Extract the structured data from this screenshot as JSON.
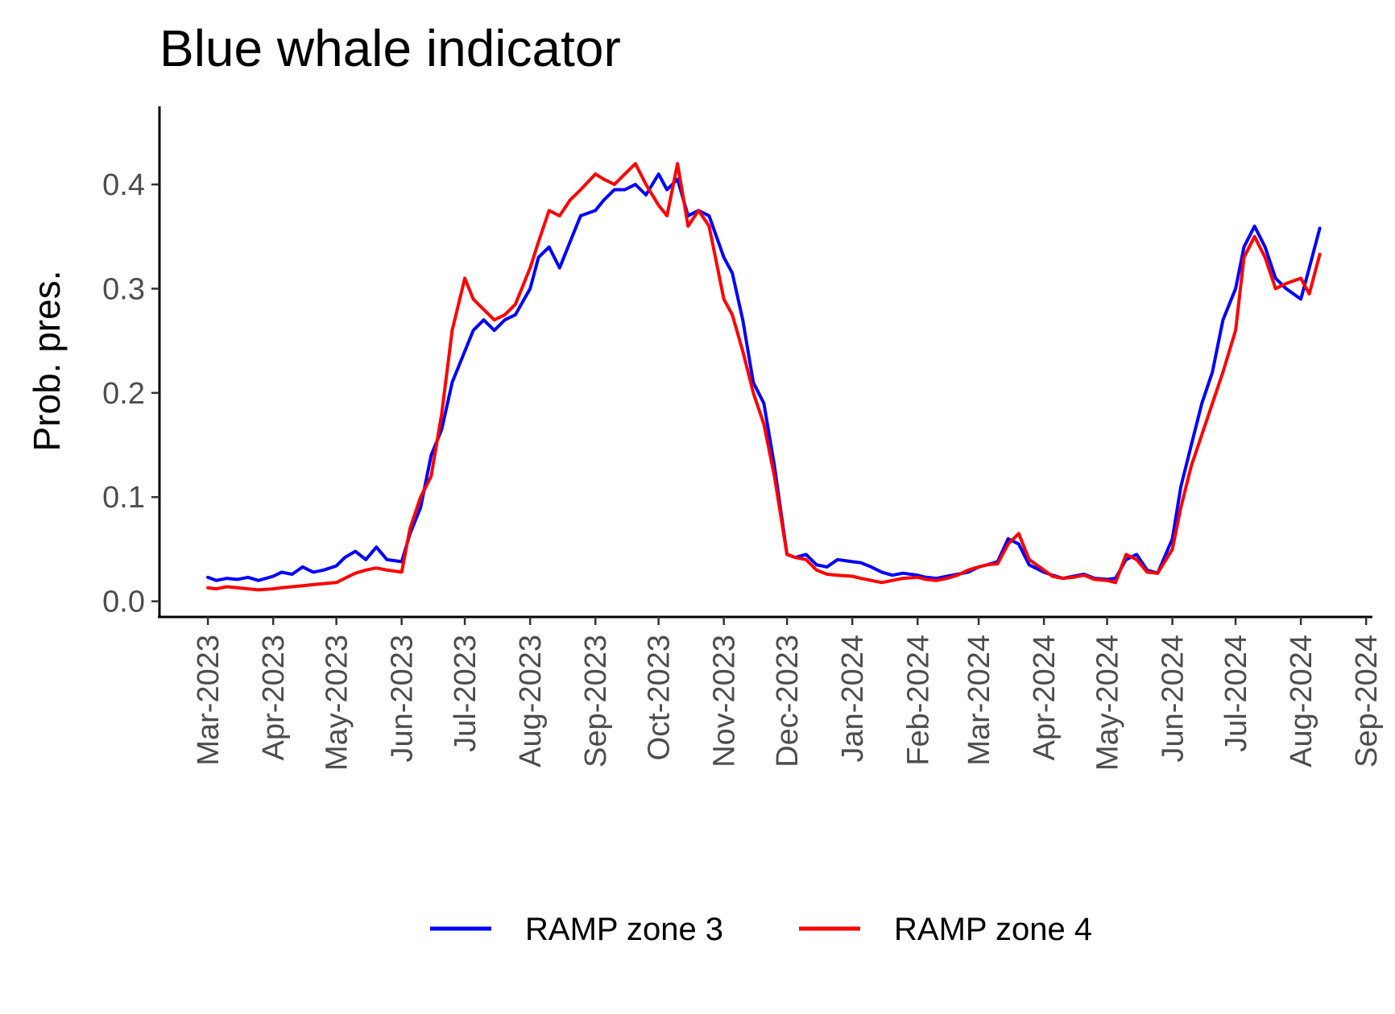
{
  "chart_data": {
    "type": "line",
    "title": "Blue whale indicator",
    "xlabel": "",
    "ylabel": "Prob. pres.",
    "x_ticks": [
      "Mar-2023",
      "Apr-2023",
      "May-2023",
      "Jun-2023",
      "Jul-2023",
      "Aug-2023",
      "Sep-2023",
      "Oct-2023",
      "Nov-2023",
      "Dec-2023",
      "Jan-2024",
      "Feb-2024",
      "Mar-2024",
      "Apr-2024",
      "May-2024",
      "Jun-2024",
      "Jul-2024",
      "Aug-2024",
      "Sep-2024"
    ],
    "y_ticks": [
      "0.0",
      "0.1",
      "0.2",
      "0.3",
      "0.4"
    ],
    "xlim": [
      "2023-02-06",
      "2024-09-04"
    ],
    "ylim": [
      -0.015,
      0.475
    ],
    "grid": false,
    "legend_position": "bottom",
    "series": [
      {
        "name": "RAMP zone 3",
        "color": "#0000ff",
        "points": [
          [
            "2023-03-01",
            0.023
          ],
          [
            "2023-03-05",
            0.02
          ],
          [
            "2023-03-10",
            0.022
          ],
          [
            "2023-03-15",
            0.021
          ],
          [
            "2023-03-20",
            0.023
          ],
          [
            "2023-03-25",
            0.02
          ],
          [
            "2023-04-01",
            0.024
          ],
          [
            "2023-04-05",
            0.028
          ],
          [
            "2023-04-10",
            0.026
          ],
          [
            "2023-04-15",
            0.033
          ],
          [
            "2023-04-20",
            0.028
          ],
          [
            "2023-04-25",
            0.03
          ],
          [
            "2023-05-01",
            0.034
          ],
          [
            "2023-05-05",
            0.042
          ],
          [
            "2023-05-10",
            0.048
          ],
          [
            "2023-05-15",
            0.04
          ],
          [
            "2023-05-20",
            0.052
          ],
          [
            "2023-05-25",
            0.04
          ],
          [
            "2023-06-01",
            0.038
          ],
          [
            "2023-06-05",
            0.065
          ],
          [
            "2023-06-10",
            0.09
          ],
          [
            "2023-06-15",
            0.14
          ],
          [
            "2023-06-20",
            0.165
          ],
          [
            "2023-06-25",
            0.21
          ],
          [
            "2023-07-01",
            0.24
          ],
          [
            "2023-07-05",
            0.26
          ],
          [
            "2023-07-10",
            0.27
          ],
          [
            "2023-07-15",
            0.26
          ],
          [
            "2023-07-20",
            0.27
          ],
          [
            "2023-07-25",
            0.275
          ],
          [
            "2023-08-01",
            0.3
          ],
          [
            "2023-08-05",
            0.33
          ],
          [
            "2023-08-10",
            0.34
          ],
          [
            "2023-08-15",
            0.32
          ],
          [
            "2023-08-20",
            0.345
          ],
          [
            "2023-08-25",
            0.37
          ],
          [
            "2023-09-01",
            0.375
          ],
          [
            "2023-09-05",
            0.385
          ],
          [
            "2023-09-10",
            0.395
          ],
          [
            "2023-09-15",
            0.395
          ],
          [
            "2023-09-20",
            0.4
          ],
          [
            "2023-09-25",
            0.39
          ],
          [
            "2023-10-01",
            0.41
          ],
          [
            "2023-10-05",
            0.395
          ],
          [
            "2023-10-10",
            0.405
          ],
          [
            "2023-10-15",
            0.37
          ],
          [
            "2023-10-20",
            0.375
          ],
          [
            "2023-10-25",
            0.37
          ],
          [
            "2023-11-01",
            0.33
          ],
          [
            "2023-11-05",
            0.315
          ],
          [
            "2023-11-10",
            0.27
          ],
          [
            "2023-11-15",
            0.21
          ],
          [
            "2023-11-20",
            0.19
          ],
          [
            "2023-11-25",
            0.13
          ],
          [
            "2023-12-01",
            0.045
          ],
          [
            "2023-12-05",
            0.042
          ],
          [
            "2023-12-10",
            0.045
          ],
          [
            "2023-12-15",
            0.035
          ],
          [
            "2023-12-20",
            0.033
          ],
          [
            "2023-12-25",
            0.04
          ],
          [
            "2024-01-01",
            0.038
          ],
          [
            "2024-01-05",
            0.037
          ],
          [
            "2024-01-10",
            0.033
          ],
          [
            "2024-01-15",
            0.028
          ],
          [
            "2024-01-20",
            0.025
          ],
          [
            "2024-01-25",
            0.027
          ],
          [
            "2024-02-01",
            0.025
          ],
          [
            "2024-02-05",
            0.023
          ],
          [
            "2024-02-10",
            0.022
          ],
          [
            "2024-02-15",
            0.024
          ],
          [
            "2024-02-20",
            0.026
          ],
          [
            "2024-02-25",
            0.028
          ],
          [
            "2024-03-01",
            0.033
          ],
          [
            "2024-03-05",
            0.035
          ],
          [
            "2024-03-10",
            0.038
          ],
          [
            "2024-03-15",
            0.06
          ],
          [
            "2024-03-20",
            0.055
          ],
          [
            "2024-03-25",
            0.035
          ],
          [
            "2024-04-01",
            0.028
          ],
          [
            "2024-04-05",
            0.025
          ],
          [
            "2024-04-10",
            0.022
          ],
          [
            "2024-04-15",
            0.024
          ],
          [
            "2024-04-20",
            0.026
          ],
          [
            "2024-04-25",
            0.022
          ],
          [
            "2024-05-01",
            0.021
          ],
          [
            "2024-05-05",
            0.022
          ],
          [
            "2024-05-10",
            0.04
          ],
          [
            "2024-05-15",
            0.045
          ],
          [
            "2024-05-20",
            0.03
          ],
          [
            "2024-05-25",
            0.027
          ],
          [
            "2024-06-01",
            0.06
          ],
          [
            "2024-06-05",
            0.11
          ],
          [
            "2024-06-10",
            0.15
          ],
          [
            "2024-06-15",
            0.19
          ],
          [
            "2024-06-20",
            0.22
          ],
          [
            "2024-06-25",
            0.27
          ],
          [
            "2024-07-01",
            0.3
          ],
          [
            "2024-07-05",
            0.34
          ],
          [
            "2024-07-10",
            0.36
          ],
          [
            "2024-07-15",
            0.34
          ],
          [
            "2024-07-20",
            0.31
          ],
          [
            "2024-07-25",
            0.3
          ],
          [
            "2024-08-01",
            0.29
          ],
          [
            "2024-08-05",
            0.32
          ],
          [
            "2024-08-10",
            0.358
          ]
        ]
      },
      {
        "name": "RAMP zone 4",
        "color": "#ff0000",
        "points": [
          [
            "2023-03-01",
            0.013
          ],
          [
            "2023-03-05",
            0.012
          ],
          [
            "2023-03-10",
            0.014
          ],
          [
            "2023-03-15",
            0.013
          ],
          [
            "2023-03-20",
            0.012
          ],
          [
            "2023-03-25",
            0.011
          ],
          [
            "2023-04-01",
            0.012
          ],
          [
            "2023-04-05",
            0.013
          ],
          [
            "2023-04-10",
            0.014
          ],
          [
            "2023-04-15",
            0.015
          ],
          [
            "2023-04-20",
            0.016
          ],
          [
            "2023-04-25",
            0.017
          ],
          [
            "2023-05-01",
            0.018
          ],
          [
            "2023-05-05",
            0.022
          ],
          [
            "2023-05-10",
            0.027
          ],
          [
            "2023-05-15",
            0.03
          ],
          [
            "2023-05-20",
            0.032
          ],
          [
            "2023-05-25",
            0.03
          ],
          [
            "2023-06-01",
            0.028
          ],
          [
            "2023-06-05",
            0.07
          ],
          [
            "2023-06-10",
            0.1
          ],
          [
            "2023-06-15",
            0.12
          ],
          [
            "2023-06-20",
            0.18
          ],
          [
            "2023-06-25",
            0.26
          ],
          [
            "2023-07-01",
            0.31
          ],
          [
            "2023-07-05",
            0.29
          ],
          [
            "2023-07-10",
            0.28
          ],
          [
            "2023-07-15",
            0.27
          ],
          [
            "2023-07-20",
            0.275
          ],
          [
            "2023-07-25",
            0.285
          ],
          [
            "2023-08-01",
            0.32
          ],
          [
            "2023-08-05",
            0.345
          ],
          [
            "2023-08-10",
            0.375
          ],
          [
            "2023-08-15",
            0.37
          ],
          [
            "2023-08-20",
            0.385
          ],
          [
            "2023-08-25",
            0.395
          ],
          [
            "2023-09-01",
            0.41
          ],
          [
            "2023-09-05",
            0.405
          ],
          [
            "2023-09-10",
            0.4
          ],
          [
            "2023-09-15",
            0.41
          ],
          [
            "2023-09-20",
            0.42
          ],
          [
            "2023-09-25",
            0.4
          ],
          [
            "2023-10-01",
            0.38
          ],
          [
            "2023-10-05",
            0.37
          ],
          [
            "2023-10-10",
            0.42
          ],
          [
            "2023-10-15",
            0.36
          ],
          [
            "2023-10-20",
            0.375
          ],
          [
            "2023-10-25",
            0.36
          ],
          [
            "2023-11-01",
            0.29
          ],
          [
            "2023-11-05",
            0.275
          ],
          [
            "2023-11-10",
            0.24
          ],
          [
            "2023-11-15",
            0.2
          ],
          [
            "2023-11-20",
            0.17
          ],
          [
            "2023-11-25",
            0.12
          ],
          [
            "2023-12-01",
            0.045
          ],
          [
            "2023-12-05",
            0.042
          ],
          [
            "2023-12-10",
            0.04
          ],
          [
            "2023-12-15",
            0.03
          ],
          [
            "2023-12-20",
            0.026
          ],
          [
            "2023-12-25",
            0.025
          ],
          [
            "2024-01-01",
            0.024
          ],
          [
            "2024-01-05",
            0.022
          ],
          [
            "2024-01-10",
            0.02
          ],
          [
            "2024-01-15",
            0.018
          ],
          [
            "2024-01-20",
            0.02
          ],
          [
            "2024-01-25",
            0.022
          ],
          [
            "2024-02-01",
            0.023
          ],
          [
            "2024-02-05",
            0.021
          ],
          [
            "2024-02-10",
            0.02
          ],
          [
            "2024-02-15",
            0.022
          ],
          [
            "2024-02-20",
            0.025
          ],
          [
            "2024-02-25",
            0.03
          ],
          [
            "2024-03-01",
            0.033
          ],
          [
            "2024-03-05",
            0.035
          ],
          [
            "2024-03-10",
            0.036
          ],
          [
            "2024-03-15",
            0.055
          ],
          [
            "2024-03-20",
            0.065
          ],
          [
            "2024-03-25",
            0.04
          ],
          [
            "2024-04-01",
            0.03
          ],
          [
            "2024-04-05",
            0.024
          ],
          [
            "2024-04-10",
            0.022
          ],
          [
            "2024-04-15",
            0.023
          ],
          [
            "2024-04-20",
            0.025
          ],
          [
            "2024-04-25",
            0.021
          ],
          [
            "2024-05-01",
            0.02
          ],
          [
            "2024-05-05",
            0.018
          ],
          [
            "2024-05-10",
            0.045
          ],
          [
            "2024-05-15",
            0.04
          ],
          [
            "2024-05-20",
            0.028
          ],
          [
            "2024-05-25",
            0.027
          ],
          [
            "2024-06-01",
            0.05
          ],
          [
            "2024-06-05",
            0.09
          ],
          [
            "2024-06-10",
            0.13
          ],
          [
            "2024-06-15",
            0.16
          ],
          [
            "2024-06-20",
            0.19
          ],
          [
            "2024-06-25",
            0.22
          ],
          [
            "2024-07-01",
            0.26
          ],
          [
            "2024-07-05",
            0.33
          ],
          [
            "2024-07-10",
            0.35
          ],
          [
            "2024-07-15",
            0.33
          ],
          [
            "2024-07-20",
            0.3
          ],
          [
            "2024-07-25",
            0.305
          ],
          [
            "2024-08-01",
            0.31
          ],
          [
            "2024-08-05",
            0.295
          ],
          [
            "2024-08-10",
            0.333
          ]
        ]
      }
    ]
  }
}
